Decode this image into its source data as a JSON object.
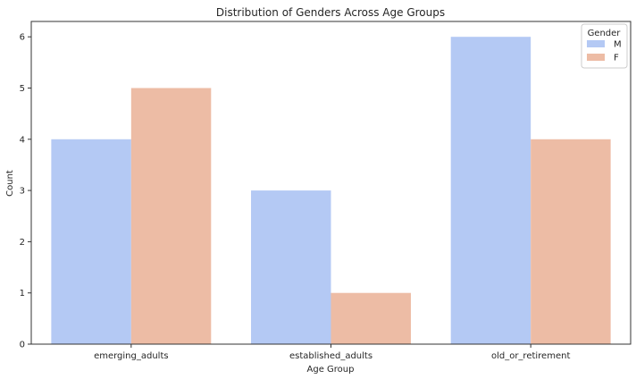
{
  "chart_data": {
    "type": "bar",
    "title": "Distribution of Genders Across Age Groups",
    "xlabel": "Age Group",
    "ylabel": "Count",
    "categories": [
      "emerging_adults",
      "established_adults",
      "old_or_retirement"
    ],
    "series": [
      {
        "name": "M",
        "values": [
          4,
          3,
          6
        ],
        "color": "#b4c9f4"
      },
      {
        "name": "F",
        "values": [
          5,
          1,
          4
        ],
        "color": "#edbca5"
      }
    ],
    "ylim": [
      0,
      6.3
    ],
    "yticks": [
      "0",
      "1",
      "2",
      "3",
      "4",
      "5",
      "6"
    ],
    "legend": {
      "title": "Gender",
      "position": "top-right"
    },
    "grid": false
  }
}
